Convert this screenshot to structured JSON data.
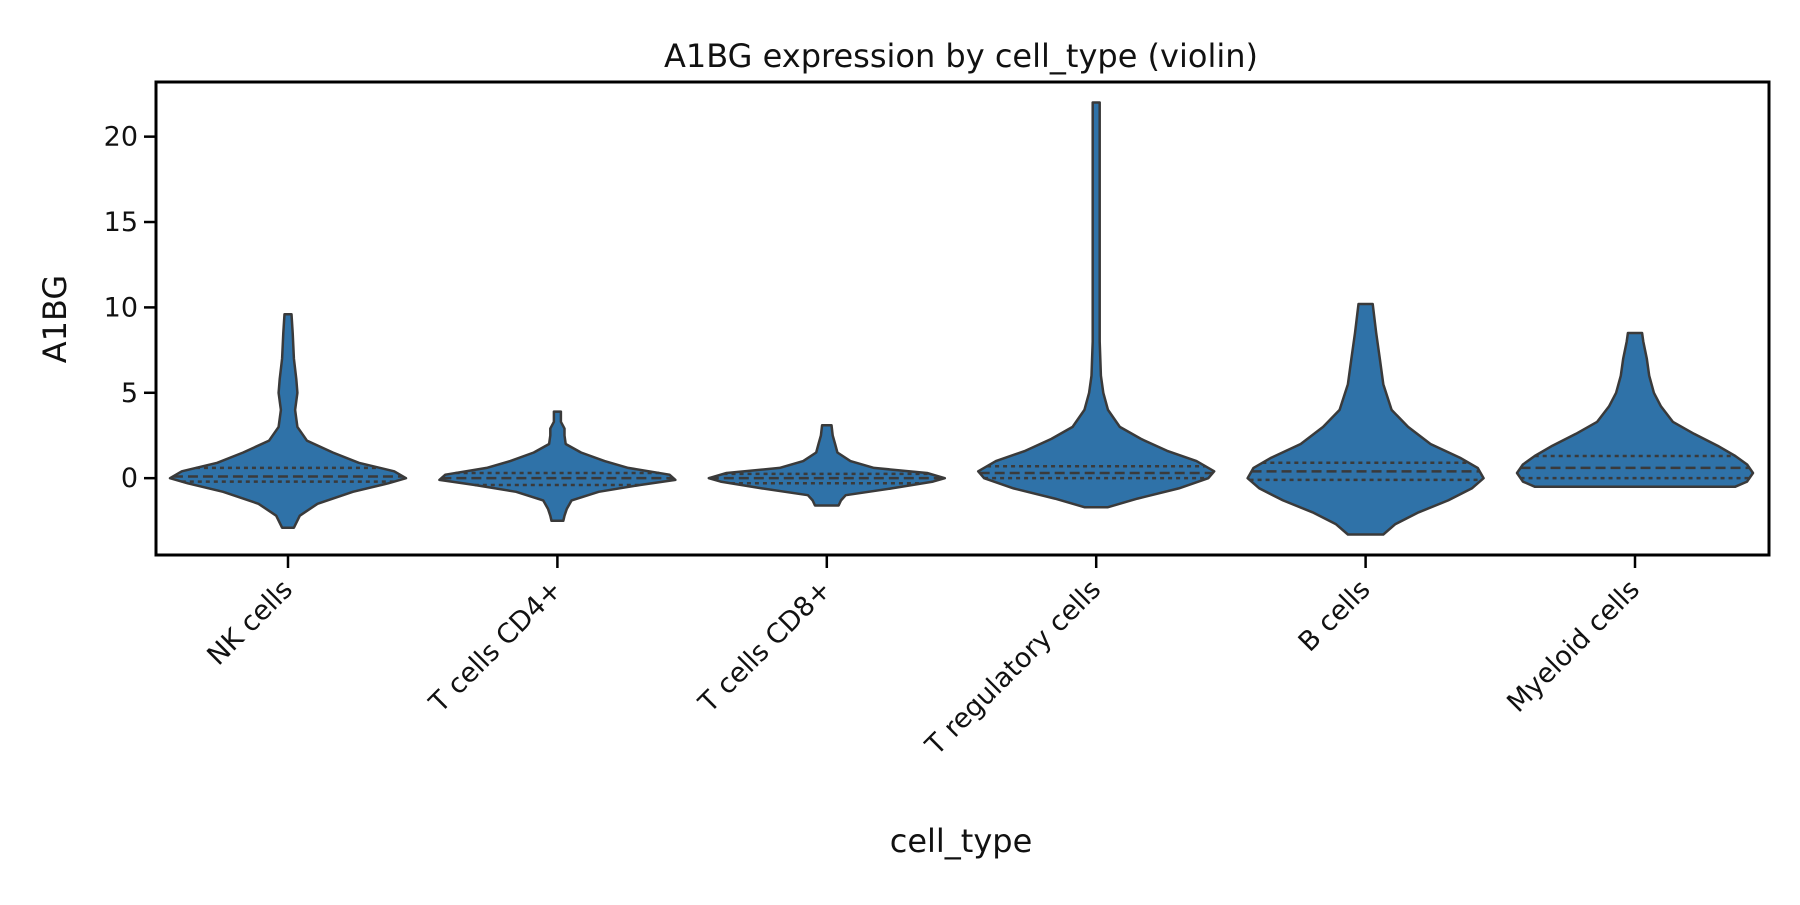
{
  "chart_data": {
    "type": "violin",
    "title": "A1BG expression by cell_type (violin)",
    "xlabel": "cell_type",
    "ylabel": "A1BG",
    "ylim": [
      -4.5,
      23.2
    ],
    "yticks": [
      0,
      5,
      10,
      15,
      20
    ],
    "grid": false,
    "legend": "none",
    "inner": "quartiles",
    "colors": {
      "fill": "#2f72a8",
      "stroke": "#3a3a3a",
      "axis": "#000000"
    },
    "categories": [
      "NK cells",
      "T cells CD4+",
      "T cells CD8+",
      "T regulatory cells",
      "B cells",
      "Myeloid cells"
    ],
    "violins": [
      {
        "category": "NK cells",
        "min": -2.9,
        "max": 9.6,
        "quartiles": [
          -0.2,
          0.1,
          0.6
        ],
        "density": [
          [
            -2.9,
            0.05
          ],
          [
            -2.2,
            0.1
          ],
          [
            -1.5,
            0.25
          ],
          [
            -0.8,
            0.55
          ],
          [
            -0.3,
            0.85
          ],
          [
            0.0,
            1.0
          ],
          [
            0.4,
            0.9
          ],
          [
            0.9,
            0.6
          ],
          [
            1.5,
            0.38
          ],
          [
            2.2,
            0.16
          ],
          [
            3.0,
            0.08
          ],
          [
            4.0,
            0.06
          ],
          [
            5.0,
            0.08
          ],
          [
            5.8,
            0.07
          ],
          [
            7.0,
            0.05
          ],
          [
            8.5,
            0.04
          ],
          [
            9.6,
            0.03
          ]
        ]
      },
      {
        "category": "T cells CD4+",
        "min": -2.5,
        "max": 3.9,
        "quartiles": [
          -0.4,
          0.0,
          0.3
        ],
        "density": [
          [
            -2.5,
            0.05
          ],
          [
            -2.2,
            0.06
          ],
          [
            -1.8,
            0.08
          ],
          [
            -1.3,
            0.12
          ],
          [
            -0.8,
            0.35
          ],
          [
            -0.4,
            0.7
          ],
          [
            -0.1,
            1.0
          ],
          [
            0.2,
            0.95
          ],
          [
            0.6,
            0.6
          ],
          [
            1.0,
            0.4
          ],
          [
            1.5,
            0.2
          ],
          [
            2.0,
            0.07
          ],
          [
            2.5,
            0.06
          ],
          [
            2.9,
            0.06
          ],
          [
            3.3,
            0.03
          ],
          [
            3.9,
            0.03
          ]
        ]
      },
      {
        "category": "T cells CD8+",
        "min": -1.6,
        "max": 3.1,
        "quartiles": [
          -0.3,
          0.0,
          0.25
        ],
        "density": [
          [
            -1.6,
            0.1
          ],
          [
            -1.3,
            0.12
          ],
          [
            -1.0,
            0.16
          ],
          [
            -0.6,
            0.55
          ],
          [
            -0.2,
            0.9
          ],
          [
            0.0,
            1.0
          ],
          [
            0.3,
            0.85
          ],
          [
            0.6,
            0.4
          ],
          [
            1.0,
            0.2
          ],
          [
            1.5,
            0.09
          ],
          [
            2.0,
            0.07
          ],
          [
            2.5,
            0.05
          ],
          [
            3.1,
            0.04
          ]
        ]
      },
      {
        "category": "T regulatory cells",
        "min": -1.7,
        "max": 22.0,
        "quartiles": [
          0.0,
          0.3,
          0.7
        ],
        "density": [
          [
            -1.7,
            0.1
          ],
          [
            -1.2,
            0.35
          ],
          [
            -0.6,
            0.7
          ],
          [
            0.0,
            0.95
          ],
          [
            0.4,
            1.0
          ],
          [
            1.0,
            0.85
          ],
          [
            1.6,
            0.6
          ],
          [
            2.3,
            0.38
          ],
          [
            3.0,
            0.2
          ],
          [
            4.0,
            0.1
          ],
          [
            5.0,
            0.06
          ],
          [
            6.0,
            0.04
          ],
          [
            8.0,
            0.03
          ],
          [
            12.0,
            0.03
          ],
          [
            16.0,
            0.03
          ],
          [
            22.0,
            0.03
          ]
        ]
      },
      {
        "category": "B cells",
        "min": -3.3,
        "max": 10.2,
        "quartiles": [
          -0.1,
          0.4,
          0.9
        ],
        "density": [
          [
            -3.3,
            0.15
          ],
          [
            -2.7,
            0.25
          ],
          [
            -2.0,
            0.45
          ],
          [
            -1.3,
            0.7
          ],
          [
            -0.6,
            0.9
          ],
          [
            0.0,
            1.0
          ],
          [
            0.6,
            0.95
          ],
          [
            1.2,
            0.8
          ],
          [
            2.0,
            0.55
          ],
          [
            3.0,
            0.36
          ],
          [
            4.0,
            0.22
          ],
          [
            5.5,
            0.15
          ],
          [
            7.0,
            0.12
          ],
          [
            8.5,
            0.09
          ],
          [
            10.2,
            0.06
          ]
        ]
      },
      {
        "category": "Myeloid cells",
        "min": -0.5,
        "max": 8.5,
        "quartiles": [
          0.0,
          0.6,
          1.3
        ],
        "density": [
          [
            -0.5,
            0.85
          ],
          [
            -0.2,
            0.95
          ],
          [
            0.3,
            1.0
          ],
          [
            0.8,
            0.95
          ],
          [
            1.3,
            0.85
          ],
          [
            1.9,
            0.7
          ],
          [
            2.6,
            0.5
          ],
          [
            3.3,
            0.32
          ],
          [
            4.2,
            0.22
          ],
          [
            5.0,
            0.16
          ],
          [
            6.0,
            0.12
          ],
          [
            7.0,
            0.1
          ],
          [
            8.0,
            0.07
          ],
          [
            8.5,
            0.06
          ]
        ]
      }
    ]
  }
}
